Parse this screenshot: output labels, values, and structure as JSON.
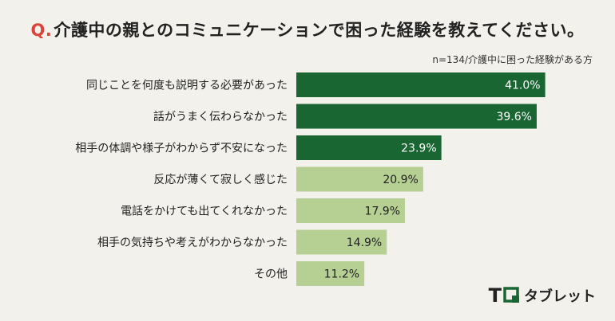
{
  "title": {
    "prefix": "Q.",
    "text": "介護中の親とのコミュニケーションで困った経験を教えてください。"
  },
  "note": "n=134/介護中に困った経験がある方",
  "logo": {
    "letter_t": "T",
    "brand": "タブレット",
    "icon": "q-logo-icon"
  },
  "colors": {
    "background": "#f2f1ec",
    "dark_bar": "#1a6633",
    "light_bar": "#b6cf93",
    "title_accent": "#d9453a"
  },
  "chart_data": {
    "type": "bar",
    "orientation": "horizontal",
    "categories": [
      "同じことを何度も説明する必要があった",
      "話がうまく伝わらなかった",
      "相手の体調や様子がわからず不安になった",
      "反応が薄くて寂しく感じた",
      "電話をかけても出てくれなかった",
      "相手の気持ちや考えがわからなかった",
      "その他"
    ],
    "values": [
      41.0,
      39.6,
      23.9,
      20.9,
      17.9,
      14.9,
      11.2
    ],
    "value_labels": [
      "41.0%",
      "39.6%",
      "23.9%",
      "20.9%",
      "17.9%",
      "14.9%",
      "11.2%"
    ],
    "highlighted_top": 3,
    "xlim": [
      0,
      50
    ],
    "grid": false
  }
}
